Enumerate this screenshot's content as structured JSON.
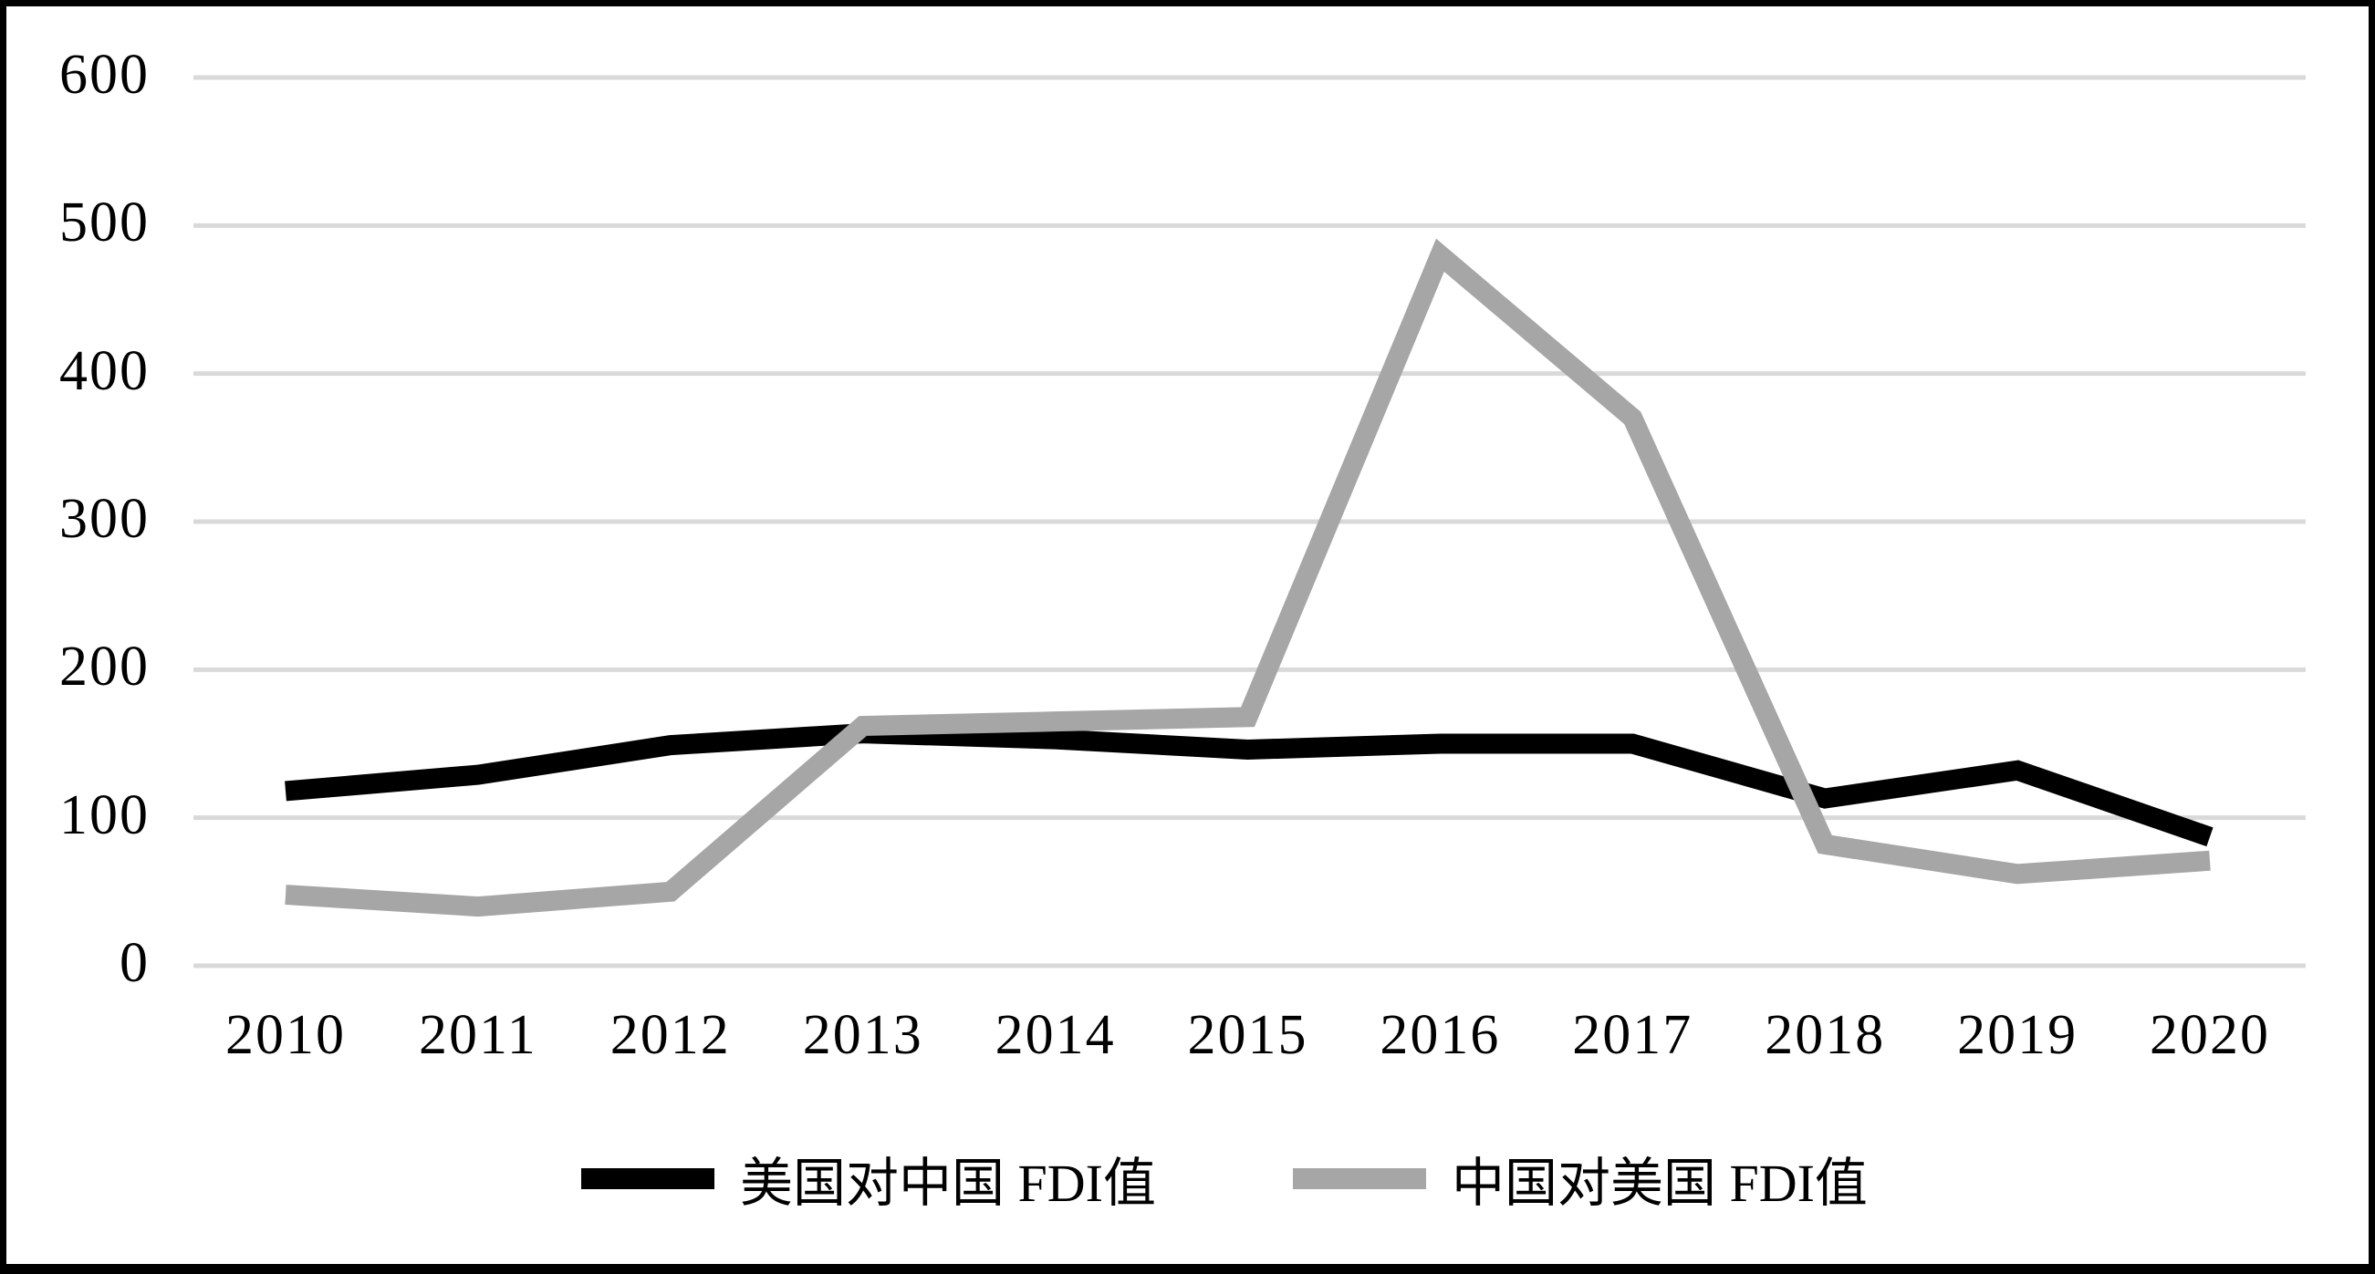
{
  "chart_data": {
    "type": "line",
    "title": "",
    "x": [
      2010,
      2011,
      2012,
      2013,
      2014,
      2015,
      2016,
      2017,
      2018,
      2019,
      2020
    ],
    "series": [
      {
        "name": "美国对中国 FDI值",
        "color": "#000000",
        "values": [
          118,
          129,
          149,
          157,
          153,
          146,
          150,
          150,
          113,
          132,
          87
        ]
      },
      {
        "name": "中国对美国 FDI值",
        "color": "#a6a6a6",
        "values": [
          48,
          40,
          50,
          162,
          165,
          168,
          480,
          370,
          82,
          62,
          71
        ]
      }
    ],
    "ylim": [
      0,
      600
    ],
    "yticks": [
      0,
      100,
      200,
      300,
      400,
      500,
      600
    ],
    "grid": "horizontal-only",
    "gridline_color": "#d9d9d9",
    "background": "#ffffff",
    "border_color": "#000000",
    "legend_position": "bottom"
  }
}
